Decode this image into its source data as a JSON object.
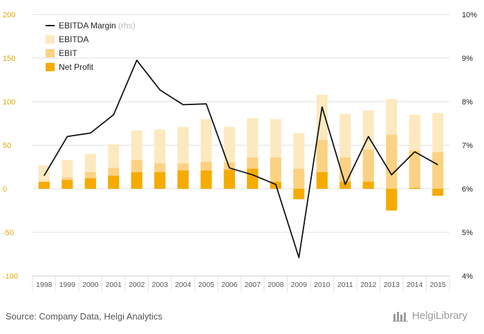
{
  "chart_data": {
    "type": "bar",
    "categories": [
      "1998",
      "1999",
      "2000",
      "2001",
      "2002",
      "2003",
      "2004",
      "2005",
      "2006",
      "2007",
      "2008",
      "2009",
      "2010",
      "2011",
      "2012",
      "2013",
      "2014",
      "2015"
    ],
    "series": [
      {
        "name": "EBITDA",
        "kind": "bar",
        "axis": "left",
        "values": [
          27,
          33,
          40,
          51,
          67,
          68,
          71,
          80,
          71,
          81,
          80,
          64,
          108,
          86,
          90,
          103,
          85,
          87
        ]
      },
      {
        "name": "EBIT",
        "kind": "bar",
        "axis": "left",
        "values": [
          8,
          13,
          19,
          24,
          33,
          29,
          29,
          31,
          30,
          36,
          36,
          23,
          56,
          36,
          45,
          62,
          44,
          42
        ]
      },
      {
        "name": "Net Profit",
        "kind": "bar",
        "axis": "left",
        "values": [
          8,
          10,
          12,
          15,
          19,
          19,
          21,
          21,
          22,
          23,
          8,
          -12,
          19,
          8,
          8,
          -25,
          1,
          -8
        ]
      },
      {
        "name": "EBITDA Margin",
        "name_suffix": "(rhs)",
        "kind": "line",
        "axis": "right",
        "values": [
          6.3,
          7.2,
          7.28,
          7.7,
          8.95,
          8.27,
          7.93,
          7.95,
          6.48,
          6.32,
          6.1,
          4.42,
          7.88,
          6.1,
          7.2,
          6.32,
          6.85,
          6.55
        ]
      }
    ],
    "y_left": {
      "min": -100,
      "max": 200,
      "ticks": [
        -100,
        -50,
        0,
        50,
        100,
        150,
        200
      ]
    },
    "y_right": {
      "min": 4,
      "max": 10,
      "ticks": [
        "4%",
        "5%",
        "6%",
        "7%",
        "8%",
        "9%",
        "10%"
      ]
    },
    "grid": true,
    "legend_position": "top-left",
    "colors": {
      "EBITDA": "#fde9bf",
      "EBIT": "#fbd283",
      "Net Profit": "#f5ab00",
      "EBITDA Margin": "#111111",
      "left_axis_text": "#e0a800",
      "grid": "#dddddd"
    }
  },
  "footer": {
    "source": "Source: Company Data, Helgi Analytics",
    "logo_text": "HelgiLibrary"
  }
}
